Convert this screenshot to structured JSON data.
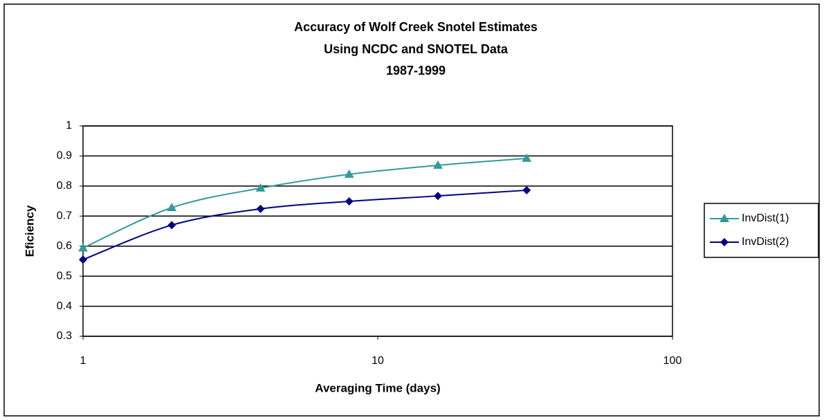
{
  "chart_data": {
    "type": "line",
    "title": [
      "Accuracy of Wolf Creek Snotel Estimates",
      "Using NCDC and SNOTEL Data",
      "1987-1999"
    ],
    "x_label": "Averaging Time (days)",
    "y_label": "Eficiency",
    "x": [
      1,
      2,
      4,
      8,
      16,
      32
    ],
    "series": [
      {
        "name": "InvDist(1)",
        "color": "#339999",
        "marker": "triangle",
        "values": [
          0.594,
          0.728,
          0.793,
          0.839,
          0.869,
          0.892
        ]
      },
      {
        "name": "InvDist(2)",
        "color": "#000080",
        "marker": "diamond",
        "values": [
          0.555,
          0.67,
          0.724,
          0.749,
          0.767,
          0.786
        ]
      }
    ],
    "xlim": [
      1,
      100
    ],
    "xticks": [
      1,
      10,
      100
    ],
    "x_log": true,
    "ylim": [
      0.3,
      1
    ],
    "yticks": [
      0.3,
      0.4,
      0.5,
      0.6,
      0.7,
      0.8,
      0.9,
      1
    ],
    "grid": true,
    "smooth": true,
    "legend": "right"
  }
}
